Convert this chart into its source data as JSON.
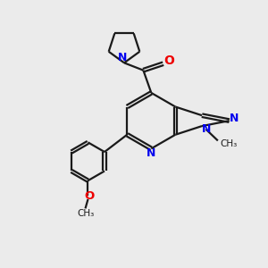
{
  "bg_color": "#ebebeb",
  "bond_color": "#1a1a1a",
  "n_color": "#0000ee",
  "o_color": "#ee0000",
  "line_width": 1.6,
  "dbo": 0.055,
  "xlim": [
    0,
    10
  ],
  "ylim": [
    0,
    10
  ]
}
